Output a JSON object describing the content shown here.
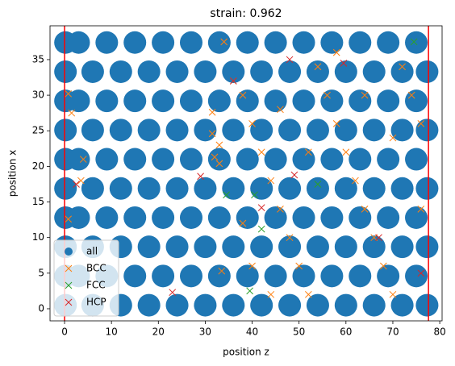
{
  "chart_data": {
    "type": "scatter",
    "title": "strain: 0.962",
    "xlabel": "position z",
    "ylabel": "position x",
    "xlim": [
      -3.1,
      80.5
    ],
    "ylim": [
      -1.7,
      39.75
    ],
    "xticks": [
      0,
      10,
      20,
      30,
      40,
      50,
      60,
      70,
      80
    ],
    "yticks": [
      0,
      5,
      10,
      15,
      20,
      25,
      30,
      35
    ],
    "legend": "lower left",
    "vlines": {
      "values": [
        0,
        77.6
      ],
      "color": "#ff0000"
    },
    "series": [
      {
        "name": "all",
        "color": "#1f77b4",
        "marker": "o",
        "x": [
          0.2,
          6,
          12,
          18,
          24,
          30,
          36,
          42,
          48,
          54,
          60,
          66,
          72,
          77.3,
          0.2,
          3,
          9,
          15,
          21,
          27,
          33,
          39,
          45,
          51,
          57,
          63,
          69,
          75,
          0.2,
          6,
          12,
          18,
          24,
          30,
          36,
          42,
          48,
          54,
          60,
          66,
          72,
          77.3,
          0.2,
          3,
          9,
          15,
          21,
          27,
          33,
          39,
          45,
          51,
          57,
          63,
          69,
          75,
          0.2,
          6,
          12,
          18,
          24,
          30,
          36,
          42,
          48,
          54,
          60,
          66,
          72,
          77.3,
          0.2,
          3,
          9,
          15,
          21,
          27,
          33,
          39,
          45,
          51,
          57,
          63,
          69,
          75,
          0.2,
          6,
          12,
          18,
          24,
          30,
          36,
          42,
          48,
          54,
          60,
          66,
          72,
          77.3,
          0.2,
          3,
          9,
          15,
          21,
          27,
          33,
          39,
          45,
          51,
          57,
          63,
          69,
          75,
          0.2,
          6,
          12,
          18,
          24,
          30,
          36,
          42,
          48,
          54,
          60,
          66,
          72,
          77.3,
          0.2,
          3,
          9,
          15,
          21,
          27,
          33,
          39,
          45,
          51,
          57,
          63,
          69,
          75
        ],
        "values": [
          0.5,
          0.5,
          0.5,
          0.5,
          0.5,
          0.5,
          0.5,
          0.5,
          0.5,
          0.5,
          0.5,
          0.5,
          0.5,
          0.5,
          4.6,
          4.6,
          4.6,
          4.6,
          4.6,
          4.6,
          4.6,
          4.6,
          4.6,
          4.6,
          4.6,
          4.6,
          4.6,
          4.6,
          8.7,
          8.7,
          8.7,
          8.7,
          8.7,
          8.7,
          8.7,
          8.7,
          8.7,
          8.7,
          8.7,
          8.7,
          8.7,
          8.7,
          12.8,
          12.8,
          12.8,
          12.8,
          12.8,
          12.8,
          12.8,
          12.8,
          12.8,
          12.8,
          12.8,
          12.8,
          12.8,
          12.8,
          16.9,
          16.9,
          16.9,
          16.9,
          16.9,
          16.9,
          16.9,
          16.9,
          16.9,
          16.9,
          16.9,
          16.9,
          16.9,
          16.9,
          21,
          21,
          21,
          21,
          21,
          21,
          21,
          21,
          21,
          21,
          21,
          21,
          21,
          21,
          25.1,
          25.1,
          25.1,
          25.1,
          25.1,
          25.1,
          25.1,
          25.1,
          25.1,
          25.1,
          25.1,
          25.1,
          25.1,
          25.1,
          29.2,
          29.2,
          29.2,
          29.2,
          29.2,
          29.2,
          29.2,
          29.2,
          29.2,
          29.2,
          29.2,
          29.2,
          29.2,
          29.2,
          33.3,
          33.3,
          33.3,
          33.3,
          33.3,
          33.3,
          33.3,
          33.3,
          33.3,
          33.3,
          33.3,
          33.3,
          33.3,
          33.3,
          37.4,
          37.4,
          37.4,
          37.4,
          37.4,
          37.4,
          37.4,
          37.4,
          37.4,
          37.4,
          37.4,
          37.4,
          37.4,
          37.4
        ]
      },
      {
        "name": "BCC",
        "color": "#ff7f0e",
        "marker": "x",
        "x": [
          0.8,
          1.5,
          0.8,
          3.5,
          4,
          31.5,
          31.5,
          32,
          33,
          33,
          33.5,
          34,
          36,
          38,
          40,
          42,
          44,
          46,
          48,
          50,
          52,
          54,
          56,
          58,
          60,
          62,
          64,
          66,
          68,
          70,
          72,
          74,
          76,
          38,
          44,
          58,
          64,
          70,
          76,
          52,
          46,
          40
        ],
        "values": [
          30.2,
          27.5,
          12.6,
          18,
          21,
          27.6,
          24.6,
          21.3,
          20.4,
          23,
          5.3,
          37.5,
          32,
          30,
          26,
          22,
          18,
          14,
          10,
          6,
          2,
          34,
          30,
          26,
          22,
          18,
          14,
          10,
          6,
          2,
          34,
          30,
          26,
          12,
          2,
          36,
          30,
          24,
          14,
          22,
          28,
          6
        ]
      },
      {
        "name": "FCC",
        "color": "#2ca02c",
        "marker": "x",
        "x": [
          34.5,
          40.5,
          42,
          39.5,
          54,
          74.5
        ],
        "values": [
          16,
          16,
          11.2,
          2.5,
          17.5,
          37.5
        ]
      },
      {
        "name": "HCP",
        "color": "#d62728",
        "marker": "x",
        "x": [
          2.5,
          23,
          29,
          36,
          42,
          48,
          49,
          59.5,
          67,
          76
        ],
        "values": [
          17.5,
          2.3,
          18.6,
          32,
          14.2,
          35,
          18.8,
          34.5,
          10,
          5
        ]
      }
    ]
  }
}
